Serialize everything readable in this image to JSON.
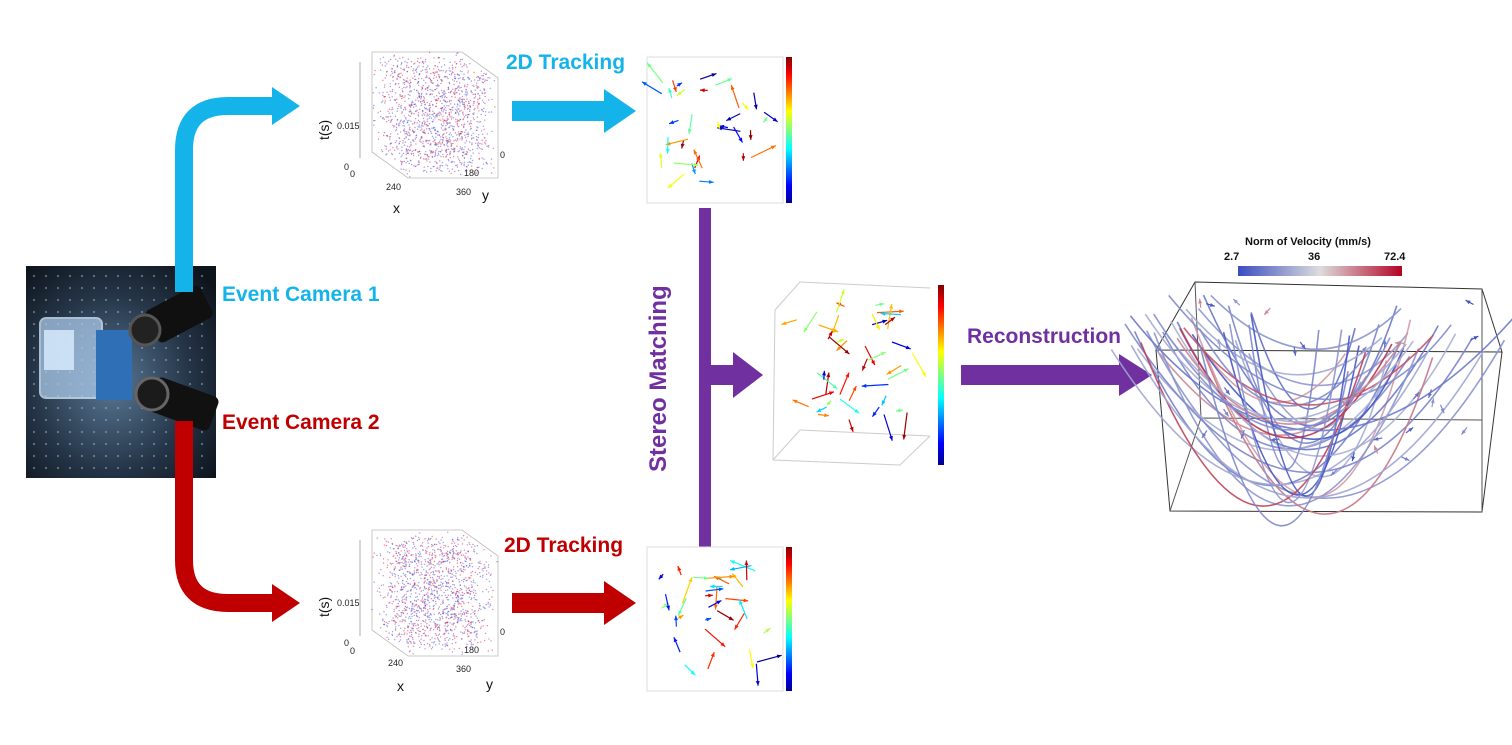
{
  "labels": {
    "event_camera_1": "Event Camera 1",
    "event_camera_2": "Event Camera 2",
    "tracking_top": "2D Tracking",
    "tracking_bottom": "2D Tracking",
    "stereo_matching": "Stereo Matching",
    "reconstruction": "Reconstruction"
  },
  "event_cube": {
    "t_label": "t(s)",
    "x_label": "x",
    "y_label": "y",
    "t_ticks": [
      "0.015",
      "0"
    ],
    "x_ticks": [
      "0",
      "240"
    ],
    "y_ticks": [
      "0",
      "180",
      "360"
    ]
  },
  "colorbar": {
    "title": "Norm of Velocity (mm/s)",
    "min_label": "2.7",
    "mid_label": "36",
    "max_label": "72.4"
  },
  "colors": {
    "camera1": "#14b4eb",
    "camera2": "#c00000",
    "stereo": "#7030a0"
  }
}
